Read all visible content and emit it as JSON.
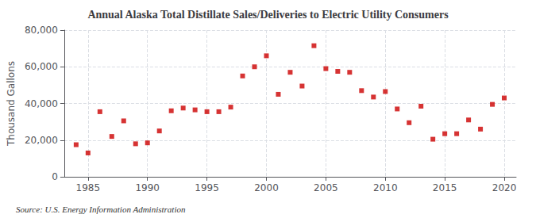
{
  "chart_data": {
    "type": "scatter",
    "title": "Annual Alaska Total Distillate Sales/Deliveries to Electric Utility Consumers",
    "ylabel": "Thousand Gallons",
    "source": "Source: U.S. Energy Information Administration",
    "x": [
      1984,
      1985,
      1986,
      1987,
      1988,
      1989,
      1990,
      1991,
      1992,
      1993,
      1994,
      1995,
      1996,
      1997,
      1998,
      1999,
      2000,
      2001,
      2002,
      2003,
      2004,
      2005,
      2006,
      2007,
      2008,
      2009,
      2010,
      2011,
      2012,
      2013,
      2014,
      2015,
      2016,
      2017,
      2018,
      2019,
      2020
    ],
    "values": [
      17500,
      13000,
      35500,
      22000,
      30500,
      18000,
      18500,
      25000,
      36000,
      37500,
      36500,
      35500,
      35500,
      38000,
      55000,
      60000,
      66000,
      45000,
      57000,
      49500,
      71500,
      59000,
      57500,
      57000,
      47000,
      43500,
      46500,
      37000,
      29500,
      38500,
      20500,
      23500,
      23500,
      31000,
      26000,
      39500,
      43000
    ],
    "color": "#cc0000",
    "marker": "square",
    "xlim": [
      1983,
      2021
    ],
    "xticks": [
      1985,
      1990,
      1995,
      2000,
      2005,
      2010,
      2015,
      2020
    ],
    "ylim": [
      0,
      80000
    ],
    "yticks": [
      0,
      {
        "value": 20000,
        "label": "20,000"
      },
      {
        "value": 40000,
        "label": "40,000"
      },
      {
        "value": 60000,
        "label": "60,000"
      },
      {
        "value": 80000,
        "label": "80,000"
      }
    ],
    "grid": true
  }
}
